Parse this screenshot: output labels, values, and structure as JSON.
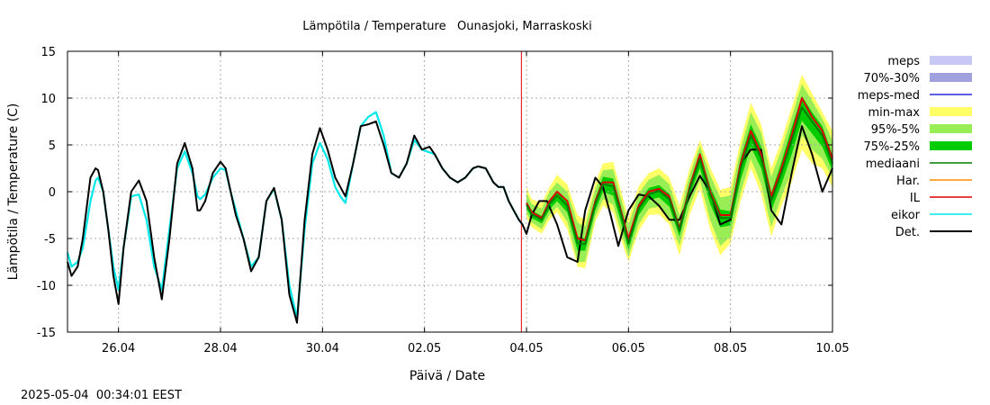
{
  "chart_data": {
    "type": "line",
    "title": "Lämpötila / Temperature   Ounasjoki, Marraskoski",
    "xlabel": "Päivä / Date",
    "ylabel": "Lämpötila / Temperature (C)",
    "timestamp": "2025-05-04  00:34:01 EEST",
    "x_unit": "days (0 = 25.04 00:00)",
    "xlim": [
      0,
      15
    ],
    "ylim": [
      -15,
      15
    ],
    "x_ticks": [
      {
        "x": 1,
        "label": "26.04"
      },
      {
        "x": 3,
        "label": "28.04"
      },
      {
        "x": 5,
        "label": "30.04"
      },
      {
        "x": 7,
        "label": "02.05"
      },
      {
        "x": 9,
        "label": "04.05"
      },
      {
        "x": 11,
        "label": "06.05"
      },
      {
        "x": 13,
        "label": "08.05"
      },
      {
        "x": 15,
        "label": "10.05"
      }
    ],
    "y_ticks": [
      -15,
      -10,
      -5,
      0,
      5,
      10,
      15
    ],
    "grid": true,
    "forecast_start_x": 8.9,
    "legend_position": "right",
    "legend": [
      {
        "label": "meps",
        "kind": "band",
        "color": "#c8c8f5"
      },
      {
        "label": "70%-30%",
        "kind": "band",
        "color": "#a0a0dc"
      },
      {
        "label": "meps-med",
        "kind": "line",
        "color": "#2828dc"
      },
      {
        "label": "min-max",
        "kind": "band",
        "color": "#ffff66"
      },
      {
        "label": "95%-5%",
        "kind": "band",
        "color": "#99ee55"
      },
      {
        "label": "75%-25%",
        "kind": "band",
        "color": "#00cc00"
      },
      {
        "label": "mediaani",
        "kind": "line",
        "color": "#008000"
      },
      {
        "label": "Har.",
        "kind": "line",
        "color": "#ff8c00"
      },
      {
        "label": "IL",
        "kind": "line",
        "color": "#e00000"
      },
      {
        "label": "eikor",
        "kind": "line",
        "color": "#00e8e8"
      },
      {
        "label": "Det.",
        "kind": "line",
        "color": "#000000"
      }
    ],
    "series": [
      {
        "name": "eikor",
        "color": "#00e8e8",
        "x": [
          0,
          0.08,
          0.2,
          0.3,
          0.45,
          0.55,
          0.6,
          0.7,
          0.8,
          0.9,
          1.0,
          1.1,
          1.25,
          1.4,
          1.55,
          1.7,
          1.85,
          2.0,
          2.15,
          2.3,
          2.45,
          2.55,
          2.6,
          2.7,
          2.85,
          3.0,
          3.1,
          3.2,
          3.3,
          3.45,
          3.6,
          3.75,
          3.9,
          4.05,
          4.2,
          4.35,
          4.5,
          4.65,
          4.8,
          4.95,
          5.1,
          5.25,
          5.35,
          5.45,
          5.6,
          5.75,
          5.9,
          6.05,
          6.2,
          6.35,
          6.5,
          6.65,
          6.8,
          6.95,
          7.1,
          7.2,
          7.35,
          7.5,
          7.65,
          7.8,
          7.95,
          8.05,
          8.2,
          8.35,
          8.45,
          8.55,
          8.65,
          8.75,
          8.85,
          8.92
        ],
        "y": [
          -6.5,
          -8,
          -7.5,
          -6,
          -1,
          1.2,
          1.5,
          0,
          -4,
          -8,
          -10.5,
          -6,
          -0.5,
          -0.3,
          -3,
          -8,
          -10.5,
          -4,
          2.5,
          4.3,
          2,
          -0.5,
          -0.8,
          -0.3,
          1.5,
          2.5,
          2.3,
          0,
          -2,
          -5,
          -8,
          -7,
          -1,
          0.3,
          -3,
          -10,
          -13.5,
          -4,
          3,
          5.2,
          3.5,
          0.5,
          -0.5,
          -1.2,
          3,
          7,
          8,
          8.5,
          6,
          2,
          1.5,
          3,
          5.5,
          4.5,
          4.2,
          4,
          2.5,
          1.5,
          1,
          1.5,
          2.5,
          2.7,
          2.5,
          1,
          0.5,
          0.5,
          -1,
          -2,
          -3,
          -3.5
        ]
      },
      {
        "name": "Det.",
        "color": "#000000",
        "x": [
          0,
          0.08,
          0.2,
          0.3,
          0.45,
          0.55,
          0.6,
          0.7,
          0.8,
          0.9,
          1.0,
          1.1,
          1.25,
          1.4,
          1.55,
          1.7,
          1.85,
          2.0,
          2.15,
          2.3,
          2.45,
          2.55,
          2.6,
          2.7,
          2.85,
          3.0,
          3.1,
          3.2,
          3.3,
          3.45,
          3.6,
          3.75,
          3.9,
          4.05,
          4.2,
          4.35,
          4.5,
          4.65,
          4.8,
          4.95,
          5.1,
          5.25,
          5.35,
          5.45,
          5.6,
          5.75,
          5.9,
          6.05,
          6.2,
          6.35,
          6.5,
          6.65,
          6.8,
          6.95,
          7.1,
          7.2,
          7.35,
          7.5,
          7.65,
          7.8,
          7.95,
          8.05,
          8.2,
          8.35,
          8.45,
          8.55,
          8.65,
          8.75,
          8.85,
          8.92,
          9.0,
          9.1,
          9.25,
          9.4,
          9.6,
          9.8,
          10.0,
          10.15,
          10.35,
          10.5,
          10.65,
          10.8,
          11.0,
          11.2,
          11.4,
          11.6,
          11.8,
          12.0,
          12.2,
          12.4,
          12.6,
          12.8,
          13.0,
          13.2,
          13.4,
          13.6,
          13.8,
          14.0,
          14.2,
          14.4,
          14.6,
          14.8,
          15.0
        ],
        "y": [
          -7.5,
          -9,
          -8,
          -5,
          1.5,
          2.5,
          2.3,
          0,
          -4,
          -9,
          -12,
          -6,
          0,
          1.2,
          -1,
          -7,
          -11.5,
          -5,
          3,
          5.2,
          2.5,
          -2,
          -2,
          -1,
          2,
          3.2,
          2.5,
          0,
          -2.5,
          -5,
          -8.5,
          -7,
          -1,
          0.4,
          -3,
          -11,
          -14,
          -3,
          4,
          6.8,
          4.5,
          1.5,
          0.5,
          -0.5,
          3,
          7,
          7.2,
          7.5,
          5,
          2,
          1.5,
          3,
          6,
          4.5,
          4.8,
          4,
          2.5,
          1.5,
          1,
          1.5,
          2.5,
          2.7,
          2.5,
          1,
          0.5,
          0.5,
          -1,
          -2,
          -3,
          -3.5,
          -4.5,
          -2.5,
          -1,
          -1,
          -3.5,
          -7,
          -7.5,
          -2,
          1.5,
          0.5,
          -2.5,
          -5.8,
          -2,
          -0.3,
          -0.5,
          -1.5,
          -3,
          -3,
          -0.5,
          1.7,
          0,
          -3.5,
          -3,
          3,
          4.5,
          4.5,
          -2,
          -3.5,
          2,
          7,
          4,
          0,
          2.5
        ]
      },
      {
        "name": "IL",
        "color": "#e00000",
        "x": [
          9.0,
          9.1,
          9.3,
          9.45,
          9.6,
          9.8,
          10.0,
          10.15,
          10.35,
          10.5,
          10.7,
          10.85,
          11.0,
          11.2,
          11.4,
          11.6,
          11.8,
          12.0,
          12.2,
          12.4,
          12.6,
          12.8,
          13.0,
          13.2,
          13.4,
          13.6,
          13.8,
          14.0,
          14.2,
          14.4,
          14.6,
          14.8,
          15.0
        ],
        "y": [
          -1.2,
          -2.2,
          -2.8,
          -1,
          0,
          -1,
          -5,
          -5.2,
          -1,
          1,
          1,
          -2,
          -5,
          -1.5,
          0,
          0.3,
          -0.5,
          -4,
          0.5,
          4,
          0,
          -2.5,
          -2.5,
          3,
          6.5,
          4,
          -0.5,
          2.5,
          6,
          10,
          8,
          6.5,
          3.5
        ]
      },
      {
        "name": "mediaani",
        "color": "#008000",
        "x": [
          9.0,
          9.1,
          9.3,
          9.45,
          9.6,
          9.8,
          10.0,
          10.15,
          10.35,
          10.5,
          10.7,
          10.85,
          11.0,
          11.2,
          11.4,
          11.6,
          11.8,
          12.0,
          12.2,
          12.4,
          12.6,
          12.8,
          13.0,
          13.2,
          13.4,
          13.6,
          13.8,
          14.0,
          14.2,
          14.4,
          14.6,
          14.8,
          15.0
        ],
        "y": [
          -1.4,
          -2.4,
          -3.0,
          -1.3,
          -0.4,
          -1.5,
          -5.5,
          -5.6,
          -1.3,
          0.8,
          0.6,
          -2.3,
          -5.5,
          -1.8,
          -0.3,
          0.1,
          -0.8,
          -4.2,
          0.2,
          3.5,
          -0.3,
          -2.8,
          -2.8,
          2.5,
          6,
          3.6,
          -1,
          2,
          5.5,
          9,
          7.5,
          6,
          3
        ]
      }
    ],
    "bands": [
      {
        "name": "min-max",
        "color": "#ffff66",
        "x": [
          9.0,
          9.1,
          9.3,
          9.45,
          9.6,
          9.8,
          10.0,
          10.15,
          10.35,
          10.5,
          10.7,
          10.85,
          11.0,
          11.2,
          11.4,
          11.6,
          11.8,
          12.0,
          12.2,
          12.4,
          12.6,
          12.8,
          13.0,
          13.2,
          13.4,
          13.6,
          13.8,
          14.0,
          14.2,
          14.4,
          14.6,
          14.8,
          15.0
        ],
        "lower": [
          -2.8,
          -3.8,
          -4.5,
          -3,
          -2.2,
          -4,
          -8,
          -8.2,
          -3.2,
          -1.5,
          -2.2,
          -5,
          -7.5,
          -4.2,
          -2.5,
          -2.4,
          -3.5,
          -6.8,
          -2.5,
          0.3,
          -4,
          -6.8,
          -5.5,
          -1,
          2.5,
          -0.2,
          -4.8,
          -1.5,
          1,
          4.5,
          3,
          2.5,
          0.5
        ],
        "upper": [
          0.5,
          -0.8,
          -1.2,
          0.5,
          1.8,
          0.8,
          -2.5,
          -3,
          1,
          3,
          3.2,
          0.2,
          -2.8,
          0.6,
          2,
          2.5,
          1.5,
          -1.5,
          2.5,
          5.5,
          2.6,
          0.2,
          0.5,
          5.5,
          9.5,
          7.2,
          2.5,
          5.5,
          9,
          12.5,
          10.5,
          8.5,
          6.5
        ]
      },
      {
        "name": "95%-5%",
        "color": "#99ee55",
        "x": [
          9.0,
          9.1,
          9.3,
          9.45,
          9.6,
          9.8,
          10.0,
          10.15,
          10.35,
          10.5,
          10.7,
          10.85,
          11.0,
          11.2,
          11.4,
          11.6,
          11.8,
          12.0,
          12.2,
          12.4,
          12.6,
          12.8,
          13.0,
          13.2,
          13.4,
          13.6,
          13.8,
          14.0,
          14.2,
          14.4,
          14.6,
          14.8,
          15.0
        ],
        "lower": [
          -2.3,
          -3.3,
          -4,
          -2.5,
          -1.6,
          -3.2,
          -7.5,
          -7.5,
          -2.7,
          -0.8,
          -1.4,
          -4.2,
          -7,
          -3.5,
          -1.8,
          -1.6,
          -2.8,
          -5.8,
          -1.6,
          1.2,
          -3,
          -5.8,
          -4.8,
          -0.1,
          3.5,
          0.8,
          -3.8,
          -0.5,
          2.2,
          6,
          4.5,
          3.5,
          1.5
        ],
        "upper": [
          -0.1,
          -1.3,
          -1.8,
          0,
          1,
          0,
          -3.3,
          -3.7,
          0.3,
          2.3,
          2.4,
          -0.6,
          -3.6,
          -0.2,
          1.3,
          1.8,
          0.8,
          -2.5,
          1.8,
          4.9,
          1.8,
          -0.6,
          -0.4,
          4.6,
          8.5,
          6.3,
          1.6,
          4.5,
          8,
          11.5,
          9.7,
          7.8,
          5.5
        ]
      },
      {
        "name": "75%-25%",
        "color": "#00cc00",
        "x": [
          9.0,
          9.1,
          9.3,
          9.45,
          9.6,
          9.8,
          10.0,
          10.15,
          10.35,
          10.5,
          10.7,
          10.85,
          11.0,
          11.2,
          11.4,
          11.6,
          11.8,
          12.0,
          12.2,
          12.4,
          12.6,
          12.8,
          13.0,
          13.2,
          13.4,
          13.6,
          13.8,
          14.0,
          14.2,
          14.4,
          14.6,
          14.8,
          15.0
        ],
        "lower": [
          -1.8,
          -2.8,
          -3.4,
          -1.9,
          -1,
          -2.2,
          -6.3,
          -6.3,
          -2,
          0,
          -0.4,
          -3.2,
          -6.2,
          -2.5,
          -0.9,
          -0.6,
          -1.6,
          -4.8,
          -0.4,
          2.5,
          -1.3,
          -3.8,
          -3.6,
          1.3,
          4.8,
          2.5,
          -2,
          0.8,
          4,
          7.6,
          6.2,
          4.8,
          2.2
        ],
        "upper": [
          -1.0,
          -2.0,
          -2.6,
          -0.9,
          -0.1,
          -1.1,
          -4.8,
          -5.0,
          -0.7,
          1.6,
          1.4,
          -1.5,
          -4.9,
          -1.2,
          0.4,
          0.7,
          -0.2,
          -3.5,
          0.9,
          4.2,
          0.6,
          -1.9,
          -2.1,
          3.6,
          7.2,
          4.8,
          -0.1,
          3.2,
          6.9,
          10.2,
          8.5,
          7,
          3.9
        ]
      }
    ]
  }
}
